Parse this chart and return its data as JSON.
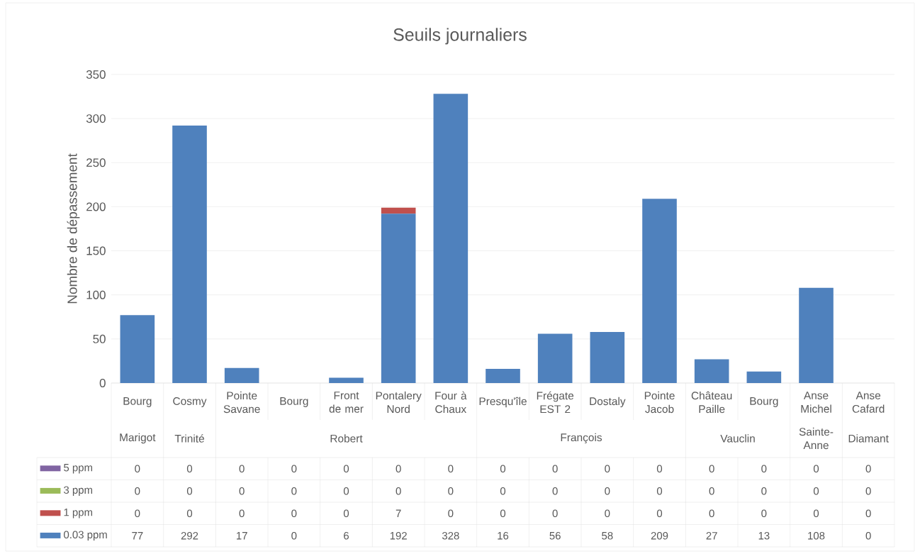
{
  "chart_data": {
    "type": "bar",
    "title": "Seuils journaliers",
    "ylabel": "Nombre de dépassement",
    "categories": [
      "Bourg",
      "Cosmy",
      "Pointe Savane",
      "Bourg",
      "Front de mer",
      "Pontalery Nord",
      "Four à Chaux",
      "Presqu'île",
      "Frégate EST 2",
      "Dostaly",
      "Pointe Jacob",
      "Château Paille",
      "Bourg",
      "Anse Michel",
      "Anse Cafard"
    ],
    "annotations": [
      "Marigot",
      "Trinité",
      "Robert",
      "François",
      "Vauclin",
      "Sainte-Anne",
      "Diamant"
    ],
    "stacked": true,
    "series": [
      {
        "name": "0.03 ppm",
        "color": "#4f81bd",
        "values": [
          77,
          292,
          17,
          0,
          6,
          192,
          328,
          16,
          56,
          58,
          209,
          27,
          13,
          108,
          0
        ],
        "value_labels": [
          "77",
          "292",
          "17",
          "0",
          "6",
          "192",
          "328",
          "16",
          "56",
          "58",
          "209",
          "27",
          "13",
          "108",
          "0"
        ]
      },
      {
        "name": "1 ppm",
        "color": "#c0504d",
        "values": [
          0,
          0,
          0,
          0,
          0,
          7,
          0,
          0,
          0,
          0,
          0,
          0,
          0,
          0,
          0
        ],
        "value_labels": [
          "0",
          "0",
          "0",
          "0",
          "0",
          "7",
          "0",
          "0",
          "0",
          "0",
          "0",
          "0",
          "0",
          "0",
          "0"
        ]
      },
      {
        "name": "3 ppm",
        "color": "#9bbb59",
        "values": [
          0,
          0,
          0,
          0,
          0,
          0,
          0,
          0,
          0,
          0,
          0,
          0,
          0,
          0,
          0
        ],
        "value_labels": [
          "0",
          "0",
          "0",
          "0",
          "0",
          "0",
          "0",
          "0",
          "0",
          "0",
          "0",
          "0",
          "0",
          "0",
          "0"
        ]
      },
      {
        "name": "5 ppm",
        "color": "#8064a2",
        "values": [
          0,
          0,
          0,
          0,
          0,
          0,
          0,
          0,
          0,
          0,
          0,
          0,
          0,
          0,
          0
        ],
        "value_labels": [
          "0",
          "0",
          "0",
          "0",
          "0",
          "0",
          "0",
          "0",
          "0",
          "0",
          "0",
          "0",
          "0",
          "0",
          "0"
        ]
      }
    ],
    "ylim": [
      0,
      350
    ],
    "yticks": [
      0,
      50,
      100,
      150,
      200,
      250,
      300,
      350
    ],
    "grid": "y",
    "legend": "bottom"
  }
}
